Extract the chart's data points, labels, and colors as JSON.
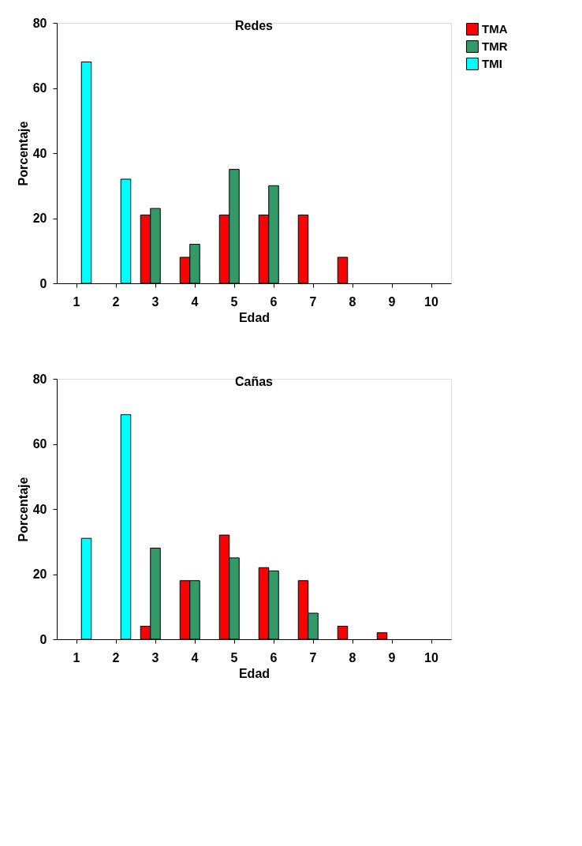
{
  "chart_data": [
    {
      "type": "bar",
      "title": "Redes",
      "xlabel": "Edad",
      "ylabel": "Porcentaje",
      "categories": [
        "1",
        "2",
        "3",
        "4",
        "5",
        "6",
        "7",
        "8",
        "9",
        "10"
      ],
      "series": [
        {
          "name": "TMA",
          "color": "#ff0000",
          "values": [
            null,
            null,
            21,
            8,
            21,
            21,
            21,
            8,
            null,
            null
          ]
        },
        {
          "name": "TMR",
          "color": "#339966",
          "values": [
            null,
            null,
            23,
            12,
            35,
            30,
            null,
            null,
            null,
            null
          ]
        },
        {
          "name": "TMI",
          "color": "#00ffff",
          "values": [
            68,
            32,
            null,
            null,
            null,
            null,
            null,
            null,
            null,
            null
          ]
        }
      ],
      "ylim": [
        0,
        80
      ],
      "yticks": [
        0,
        20,
        40,
        60,
        80
      ],
      "legend": "top right",
      "grid": false
    },
    {
      "type": "bar",
      "title": "Cañas",
      "xlabel": "Edad",
      "ylabel": "Porcentaje",
      "categories": [
        "1",
        "2",
        "3",
        "4",
        "5",
        "6",
        "7",
        "8",
        "9",
        "10"
      ],
      "series": [
        {
          "name": "TMA",
          "color": "#ff0000",
          "values": [
            null,
            null,
            4,
            18,
            32,
            22,
            18,
            4,
            2,
            null
          ]
        },
        {
          "name": "TMR",
          "color": "#339966",
          "values": [
            null,
            null,
            28,
            18,
            25,
            21,
            8,
            null,
            null,
            null
          ]
        },
        {
          "name": "TMI",
          "color": "#00ffff",
          "values": [
            31,
            69,
            null,
            null,
            null,
            null,
            null,
            null,
            null,
            null
          ]
        }
      ],
      "ylim": [
        0,
        80
      ],
      "yticks": [
        0,
        20,
        40,
        60,
        80
      ],
      "legend": "top right",
      "grid": false
    }
  ]
}
